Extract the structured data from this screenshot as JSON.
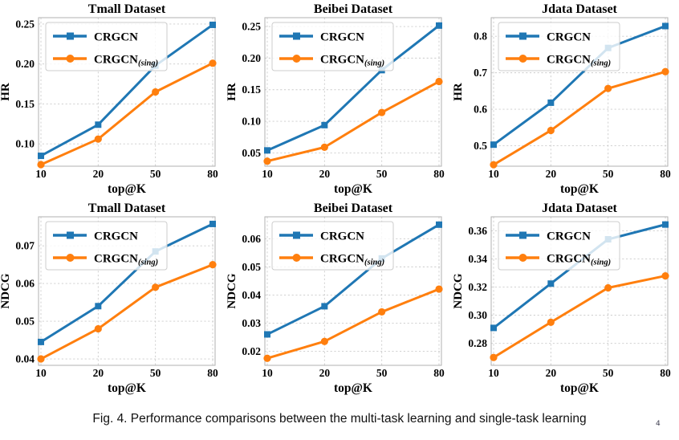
{
  "figure": {
    "caption": "Fig. 4.  Performance comparisons between the multi-task learning and single-task learning",
    "artifact_mark": "4"
  },
  "style": {
    "series1_color": "#1f77b4",
    "series2_color": "#ff7f0e",
    "grid_color": "#cccccc",
    "spine_color": "#b0b0b0",
    "text_color": "#000000",
    "legend_bg": "rgba(255,255,255,0.8)",
    "legend_border": "#cccccc"
  },
  "chart_data": [
    {
      "id": "hr-tmall",
      "type": "line",
      "title": "Tmall Dataset",
      "xlabel": "top@K",
      "ylabel": "HR",
      "x_tick_labels": [
        "10",
        "20",
        "50",
        "80"
      ],
      "y_ticks": [
        {
          "value": 0.1,
          "label": "0.10"
        },
        {
          "value": 0.15,
          "label": "0.15"
        },
        {
          "value": 0.2,
          "label": "0.20"
        },
        {
          "value": 0.25,
          "label": "0.25"
        }
      ],
      "ylim": [
        0.072,
        0.258
      ],
      "grid": true,
      "legend_position": "upper-left",
      "series": [
        {
          "key": "crgcn",
          "name": "CRGCN",
          "label_main": "CRGCN",
          "label_sub": "",
          "marker": "square",
          "color": "#1f77b4",
          "values": [
            0.085,
            0.124,
            0.198,
            0.249
          ]
        },
        {
          "key": "crgcn-sing",
          "name": "CRGCN(sing)",
          "label_main": "CRGCN",
          "label_sub": "(sing)",
          "marker": "circle",
          "color": "#ff7f0e",
          "values": [
            0.074,
            0.106,
            0.165,
            0.201
          ]
        }
      ]
    },
    {
      "id": "hr-beibei",
      "type": "line",
      "title": "Beibei Dataset",
      "xlabel": "top@K",
      "ylabel": "HR",
      "x_tick_labels": [
        "10",
        "20",
        "50",
        "80"
      ],
      "y_ticks": [
        {
          "value": 0.05,
          "label": "0.05"
        },
        {
          "value": 0.1,
          "label": "0.10"
        },
        {
          "value": 0.15,
          "label": "0.15"
        },
        {
          "value": 0.2,
          "label": "0.20"
        },
        {
          "value": 0.25,
          "label": "0.25"
        }
      ],
      "ylim": [
        0.029,
        0.264
      ],
      "grid": true,
      "legend_position": "upper-left",
      "series": [
        {
          "key": "crgcn",
          "name": "CRGCN",
          "label_main": "CRGCN",
          "label_sub": "",
          "marker": "square",
          "color": "#1f77b4",
          "values": [
            0.054,
            0.094,
            0.181,
            0.2515
          ]
        },
        {
          "key": "crgcn-sing",
          "name": "CRGCN(sing)",
          "label_main": "CRGCN",
          "label_sub": "(sing)",
          "marker": "circle",
          "color": "#ff7f0e",
          "values": [
            0.037,
            0.059,
            0.114,
            0.163
          ]
        }
      ]
    },
    {
      "id": "hr-jdata",
      "type": "line",
      "title": "Jdata Dataset",
      "xlabel": "top@K",
      "ylabel": "HR",
      "x_tick_labels": [
        "10",
        "20",
        "50",
        "80"
      ],
      "y_ticks": [
        {
          "value": 0.5,
          "label": "0.5"
        },
        {
          "value": 0.6,
          "label": "0.6"
        },
        {
          "value": 0.7,
          "label": "0.7"
        },
        {
          "value": 0.8,
          "label": "0.8"
        }
      ],
      "ylim": [
        0.444,
        0.851
      ],
      "grid": true,
      "legend_position": "upper-left",
      "series": [
        {
          "key": "crgcn",
          "name": "CRGCN",
          "label_main": "CRGCN",
          "label_sub": "",
          "marker": "square",
          "color": "#1f77b4",
          "values": [
            0.503,
            0.618,
            0.768,
            0.828
          ]
        },
        {
          "key": "crgcn-sing",
          "name": "CRGCN(sing)",
          "label_main": "CRGCN",
          "label_sub": "(sing)",
          "marker": "circle",
          "color": "#ff7f0e",
          "values": [
            0.448,
            0.542,
            0.657,
            0.703
          ]
        }
      ]
    },
    {
      "id": "ndcg-tmall",
      "type": "line",
      "title": "Tmall Dataset",
      "xlabel": "top@K",
      "ylabel": "NDCG",
      "x_tick_labels": [
        "10",
        "20",
        "50",
        "80"
      ],
      "y_ticks": [
        {
          "value": 0.04,
          "label": "0.04"
        },
        {
          "value": 0.05,
          "label": "0.05"
        },
        {
          "value": 0.06,
          "label": "0.06"
        },
        {
          "value": 0.07,
          "label": "0.07"
        }
      ],
      "ylim": [
        0.0383,
        0.0777
      ],
      "grid": true,
      "legend_position": "upper-left",
      "series": [
        {
          "key": "crgcn",
          "name": "CRGCN",
          "label_main": "CRGCN",
          "label_sub": "",
          "marker": "square",
          "color": "#1f77b4",
          "values": [
            0.0445,
            0.054,
            0.0685,
            0.0758
          ]
        },
        {
          "key": "crgcn-sing",
          "name": "CRGCN(sing)",
          "label_main": "CRGCN",
          "label_sub": "(sing)",
          "marker": "circle",
          "color": "#ff7f0e",
          "values": [
            0.04,
            0.048,
            0.059,
            0.065
          ]
        }
      ]
    },
    {
      "id": "ndcg-beibei",
      "type": "line",
      "title": "Beibei Dataset",
      "xlabel": "top@K",
      "ylabel": "NDCG",
      "x_tick_labels": [
        "10",
        "20",
        "50",
        "80"
      ],
      "y_ticks": [
        {
          "value": 0.02,
          "label": "0.02"
        },
        {
          "value": 0.03,
          "label": "0.03"
        },
        {
          "value": 0.04,
          "label": "0.04"
        },
        {
          "value": 0.05,
          "label": "0.05"
        },
        {
          "value": 0.06,
          "label": "0.06"
        }
      ],
      "ylim": [
        0.015,
        0.0678
      ],
      "grid": true,
      "legend_position": "upper-left",
      "series": [
        {
          "key": "crgcn",
          "name": "CRGCN",
          "label_main": "CRGCN",
          "label_sub": "",
          "marker": "square",
          "color": "#1f77b4",
          "values": [
            0.026,
            0.036,
            0.053,
            0.065
          ]
        },
        {
          "key": "crgcn-sing",
          "name": "CRGCN(sing)",
          "label_main": "CRGCN",
          "label_sub": "(sing)",
          "marker": "circle",
          "color": "#ff7f0e",
          "values": [
            0.0175,
            0.0235,
            0.034,
            0.0421
          ]
        }
      ]
    },
    {
      "id": "ndcg-jdata",
      "type": "line",
      "title": "Jdata Dataset",
      "xlabel": "top@K",
      "ylabel": "NDCG",
      "x_tick_labels": [
        "10",
        "20",
        "50",
        "80"
      ],
      "y_ticks": [
        {
          "value": 0.28,
          "label": "0.28"
        },
        {
          "value": 0.3,
          "label": "0.30"
        },
        {
          "value": 0.32,
          "label": "0.32"
        },
        {
          "value": 0.34,
          "label": "0.34"
        },
        {
          "value": 0.36,
          "label": "0.36"
        }
      ],
      "ylim": [
        0.2644,
        0.37
      ],
      "grid": true,
      "legend_position": "upper-left",
      "series": [
        {
          "key": "crgcn",
          "name": "CRGCN",
          "label_main": "CRGCN",
          "label_sub": "",
          "marker": "square",
          "color": "#1f77b4",
          "values": [
            0.291,
            0.3225,
            0.354,
            0.3645
          ]
        },
        {
          "key": "crgcn-sing",
          "name": "CRGCN(sing)",
          "label_main": "CRGCN",
          "label_sub": "(sing)",
          "marker": "circle",
          "color": "#ff7f0e",
          "values": [
            0.27,
            0.295,
            0.3195,
            0.328
          ]
        }
      ]
    }
  ]
}
